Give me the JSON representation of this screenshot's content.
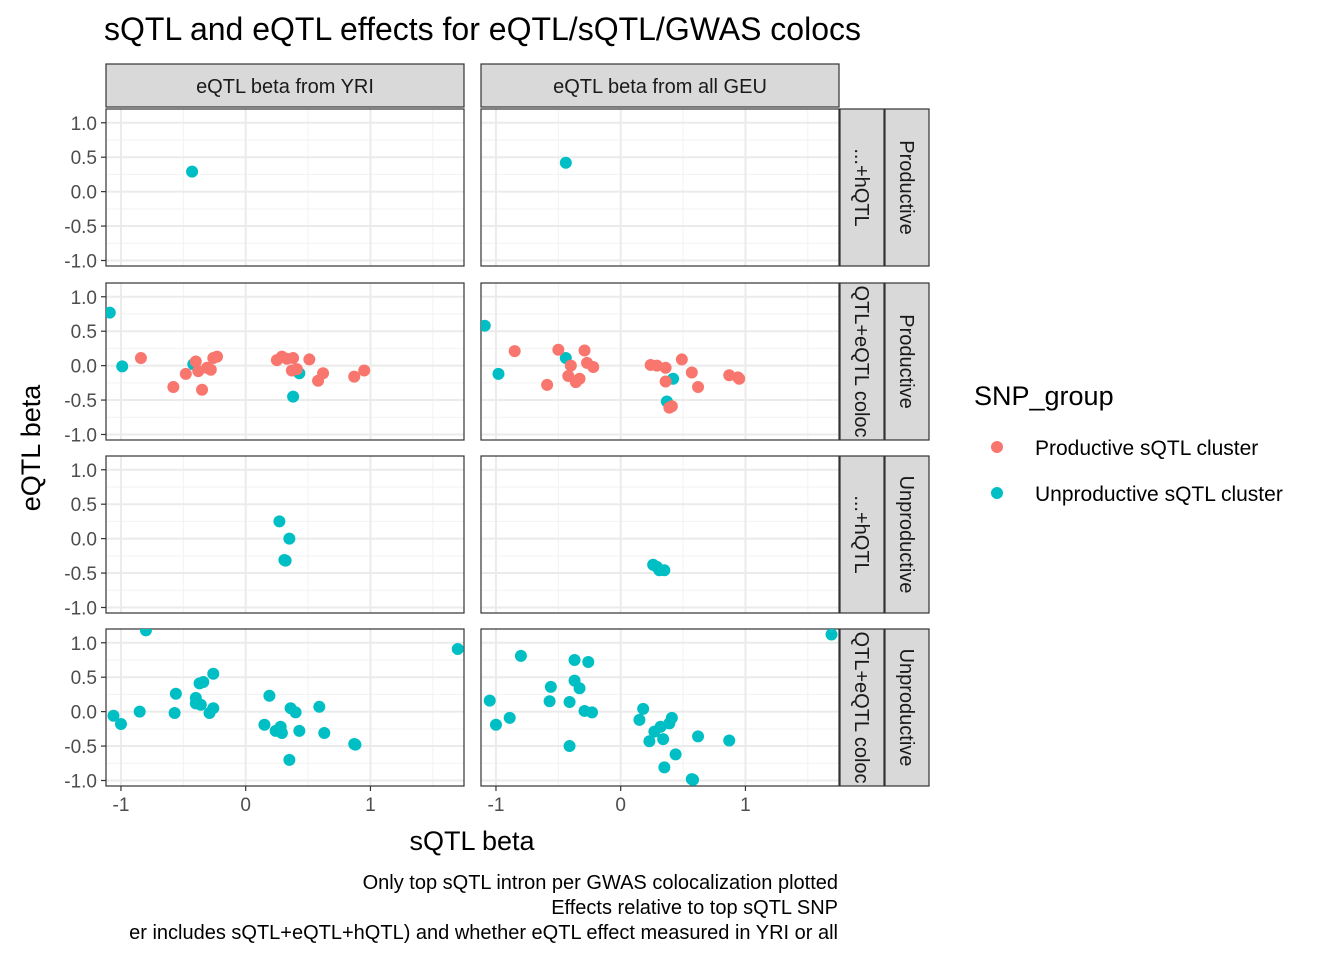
{
  "chart_data": {
    "type": "scatter",
    "title": "sQTL and eQTL effects for eQTL/sQTL/GWAS colocs",
    "xlabel": "sQTL beta",
    "ylabel": "eQTL beta",
    "xlim": [
      -1.12,
      1.75
    ],
    "ylim": [
      -1.08,
      1.2
    ],
    "x_ticks": [
      -1,
      0,
      1
    ],
    "x_tick_labels": [
      "-1",
      "0",
      "1"
    ],
    "y_ticks": [
      1.0,
      0.5,
      0.0,
      -0.5,
      -1.0
    ],
    "y_tick_labels": [
      "1.0",
      "0.5",
      "0.0",
      "-0.5",
      "-1.0"
    ],
    "grid": true,
    "legend": {
      "title": "SNP_group",
      "position": "right",
      "entries": [
        {
          "label": "Productive sQTL cluster",
          "color": "#F8766D"
        },
        {
          "label": "Unproductive sQTL cluster",
          "color": "#00BFC4"
        }
      ]
    },
    "col_strips": [
      "eQTL beta from YRI",
      "eQTL beta from all GEU"
    ],
    "row_strips_outer": [
      "Productive",
      "Productive",
      "Unproductive",
      "Unproductive"
    ],
    "row_strips_inner": [
      "...+hQTL",
      "QTL+eQTL coloc",
      "...+hQTL",
      "QTL+eQTL coloc"
    ],
    "caption": [
      "Only top sQTL intron per GWAS colocalization plotted",
      "Effects relative to top sQTL SNP",
      "er includes sQTL+eQTL+hQTL) and whether eQTL effect measured in YRI or all"
    ],
    "panels": [
      {
        "row": 0,
        "col": 0,
        "points": [
          {
            "x": -0.43,
            "y": 0.29,
            "g": 1
          }
        ]
      },
      {
        "row": 0,
        "col": 1,
        "points": [
          {
            "x": -0.44,
            "y": 0.42,
            "g": 1
          }
        ]
      },
      {
        "row": 1,
        "col": 0,
        "points": [
          {
            "x": -1.09,
            "y": 0.77,
            "g": 1
          },
          {
            "x": -0.99,
            "y": -0.01,
            "g": 1
          },
          {
            "x": -0.42,
            "y": 0.02,
            "g": 1
          },
          {
            "x": 0.38,
            "y": -0.45,
            "g": 1
          },
          {
            "x": 0.43,
            "y": -0.11,
            "g": 1
          },
          {
            "x": -0.84,
            "y": 0.11,
            "g": 0
          },
          {
            "x": -0.58,
            "y": -0.31,
            "g": 0
          },
          {
            "x": -0.48,
            "y": -0.12,
            "g": 0
          },
          {
            "x": -0.4,
            "y": 0.06,
            "g": 0
          },
          {
            "x": -0.38,
            "y": -0.08,
            "g": 0
          },
          {
            "x": -0.35,
            "y": -0.35,
            "g": 0
          },
          {
            "x": -0.31,
            "y": -0.03,
            "g": 0
          },
          {
            "x": -0.28,
            "y": -0.06,
            "g": 0
          },
          {
            "x": -0.23,
            "y": 0.13,
            "g": 0
          },
          {
            "x": -0.26,
            "y": 0.11,
            "g": 0
          },
          {
            "x": 0.25,
            "y": 0.08,
            "g": 0
          },
          {
            "x": 0.29,
            "y": 0.13,
            "g": 0
          },
          {
            "x": 0.33,
            "y": 0.1,
            "g": 0
          },
          {
            "x": 0.38,
            "y": 0.11,
            "g": 0
          },
          {
            "x": 0.37,
            "y": -0.07,
            "g": 0
          },
          {
            "x": 0.41,
            "y": -0.05,
            "g": 0
          },
          {
            "x": 0.51,
            "y": 0.09,
            "g": 0
          },
          {
            "x": 0.58,
            "y": -0.22,
            "g": 0
          },
          {
            "x": 0.62,
            "y": -0.11,
            "g": 0
          },
          {
            "x": 0.87,
            "y": -0.16,
            "g": 0
          },
          {
            "x": 0.95,
            "y": -0.07,
            "g": 0
          }
        ]
      },
      {
        "row": 1,
        "col": 1,
        "points": [
          {
            "x": -1.09,
            "y": 0.58,
            "g": 1
          },
          {
            "x": -0.98,
            "y": -0.12,
            "g": 1
          },
          {
            "x": -0.44,
            "y": 0.11,
            "g": 1
          },
          {
            "x": 0.37,
            "y": -0.52,
            "g": 1
          },
          {
            "x": 0.42,
            "y": -0.19,
            "g": 1
          },
          {
            "x": -0.85,
            "y": 0.21,
            "g": 0
          },
          {
            "x": -0.59,
            "y": -0.28,
            "g": 0
          },
          {
            "x": -0.5,
            "y": 0.23,
            "g": 0
          },
          {
            "x": -0.42,
            "y": -0.15,
            "g": 0
          },
          {
            "x": -0.4,
            "y": 0.0,
            "g": 0
          },
          {
            "x": -0.36,
            "y": -0.24,
            "g": 0
          },
          {
            "x": -0.33,
            "y": -0.19,
            "g": 0
          },
          {
            "x": -0.29,
            "y": 0.22,
            "g": 0
          },
          {
            "x": -0.27,
            "y": 0.04,
            "g": 0
          },
          {
            "x": -0.22,
            "y": -0.02,
            "g": 0
          },
          {
            "x": 0.24,
            "y": 0.01,
            "g": 0
          },
          {
            "x": 0.29,
            "y": 0.0,
            "g": 0
          },
          {
            "x": 0.36,
            "y": -0.03,
            "g": 0
          },
          {
            "x": 0.36,
            "y": -0.23,
            "g": 0
          },
          {
            "x": 0.39,
            "y": -0.61,
            "g": 0
          },
          {
            "x": 0.41,
            "y": -0.59,
            "g": 0
          },
          {
            "x": 0.49,
            "y": 0.09,
            "g": 0
          },
          {
            "x": 0.57,
            "y": -0.1,
            "g": 0
          },
          {
            "x": 0.62,
            "y": -0.31,
            "g": 0
          },
          {
            "x": 0.87,
            "y": -0.14,
            "g": 0
          },
          {
            "x": 0.94,
            "y": -0.17,
            "g": 0
          },
          {
            "x": 0.95,
            "y": -0.19,
            "g": 0
          }
        ]
      },
      {
        "row": 2,
        "col": 0,
        "points": [
          {
            "x": 0.27,
            "y": 0.25,
            "g": 1
          },
          {
            "x": 0.35,
            "y": 0.0,
            "g": 1
          },
          {
            "x": 0.31,
            "y": -0.31,
            "g": 1
          },
          {
            "x": 0.32,
            "y": -0.32,
            "g": 1
          }
        ]
      },
      {
        "row": 2,
        "col": 1,
        "points": [
          {
            "x": 0.26,
            "y": -0.38,
            "g": 1
          },
          {
            "x": 0.29,
            "y": -0.41,
            "g": 1
          },
          {
            "x": 0.31,
            "y": -0.46,
            "g": 1
          },
          {
            "x": 0.35,
            "y": -0.46,
            "g": 1
          }
        ]
      },
      {
        "row": 3,
        "col": 0,
        "points": [
          {
            "x": -1.06,
            "y": -0.06,
            "g": 1
          },
          {
            "x": -1.0,
            "y": -0.18,
            "g": 1
          },
          {
            "x": -0.8,
            "y": 1.18,
            "g": 1
          },
          {
            "x": -0.85,
            "y": 0.0,
            "g": 1
          },
          {
            "x": -0.56,
            "y": 0.26,
            "g": 1
          },
          {
            "x": -0.57,
            "y": -0.02,
            "g": 1
          },
          {
            "x": -0.4,
            "y": 0.12,
            "g": 1
          },
          {
            "x": -0.4,
            "y": 0.2,
            "g": 1
          },
          {
            "x": -0.37,
            "y": 0.41,
            "g": 1
          },
          {
            "x": -0.34,
            "y": 0.43,
            "g": 1
          },
          {
            "x": -0.36,
            "y": 0.1,
            "g": 1
          },
          {
            "x": -0.29,
            "y": -0.02,
            "g": 1
          },
          {
            "x": -0.26,
            "y": 0.05,
            "g": 1
          },
          {
            "x": -0.26,
            "y": 0.55,
            "g": 1
          },
          {
            "x": 0.15,
            "y": -0.19,
            "g": 1
          },
          {
            "x": 0.19,
            "y": 0.23,
            "g": 1
          },
          {
            "x": 0.24,
            "y": -0.28,
            "g": 1
          },
          {
            "x": 0.28,
            "y": -0.22,
            "g": 1
          },
          {
            "x": 0.29,
            "y": -0.31,
            "g": 1
          },
          {
            "x": 0.36,
            "y": 0.05,
            "g": 1
          },
          {
            "x": 0.4,
            "y": -0.01,
            "g": 1
          },
          {
            "x": 0.35,
            "y": -0.7,
            "g": 1
          },
          {
            "x": 0.43,
            "y": -0.28,
            "g": 1
          },
          {
            "x": 0.59,
            "y": 0.07,
            "g": 1
          },
          {
            "x": 0.63,
            "y": -0.31,
            "g": 1
          },
          {
            "x": 0.87,
            "y": -0.47,
            "g": 1
          },
          {
            "x": 0.88,
            "y": -0.48,
            "g": 1
          },
          {
            "x": 1.7,
            "y": 0.91,
            "g": 1
          }
        ]
      },
      {
        "row": 3,
        "col": 1,
        "points": [
          {
            "x": -1.05,
            "y": 0.16,
            "g": 1
          },
          {
            "x": -1.0,
            "y": -0.19,
            "g": 1
          },
          {
            "x": -0.89,
            "y": -0.09,
            "g": 1
          },
          {
            "x": -0.8,
            "y": 0.81,
            "g": 1
          },
          {
            "x": -0.57,
            "y": 0.15,
            "g": 1
          },
          {
            "x": -0.56,
            "y": 0.36,
            "g": 1
          },
          {
            "x": -0.41,
            "y": 0.14,
            "g": 1
          },
          {
            "x": -0.41,
            "y": -0.5,
            "g": 1
          },
          {
            "x": -0.37,
            "y": 0.45,
            "g": 1
          },
          {
            "x": -0.37,
            "y": 0.75,
            "g": 1
          },
          {
            "x": -0.33,
            "y": 0.34,
            "g": 1
          },
          {
            "x": -0.29,
            "y": 0.01,
            "g": 1
          },
          {
            "x": -0.26,
            "y": 0.72,
            "g": 1
          },
          {
            "x": -0.23,
            "y": -0.01,
            "g": 1
          },
          {
            "x": 0.15,
            "y": -0.12,
            "g": 1
          },
          {
            "x": 0.18,
            "y": 0.04,
            "g": 1
          },
          {
            "x": 0.23,
            "y": -0.43,
            "g": 1
          },
          {
            "x": 0.27,
            "y": -0.29,
            "g": 1
          },
          {
            "x": 0.32,
            "y": -0.22,
            "g": 1
          },
          {
            "x": 0.34,
            "y": -0.4,
            "g": 1
          },
          {
            "x": 0.35,
            "y": -0.81,
            "g": 1
          },
          {
            "x": 0.39,
            "y": -0.17,
            "g": 1
          },
          {
            "x": 0.41,
            "y": -0.09,
            "g": 1
          },
          {
            "x": 0.44,
            "y": -0.62,
            "g": 1
          },
          {
            "x": 0.57,
            "y": -0.98,
            "g": 1
          },
          {
            "x": 0.58,
            "y": -0.99,
            "g": 1
          },
          {
            "x": 0.62,
            "y": -0.36,
            "g": 1
          },
          {
            "x": 0.87,
            "y": -0.42,
            "g": 1
          },
          {
            "x": 1.69,
            "y": 1.12,
            "g": 1
          }
        ]
      }
    ]
  }
}
